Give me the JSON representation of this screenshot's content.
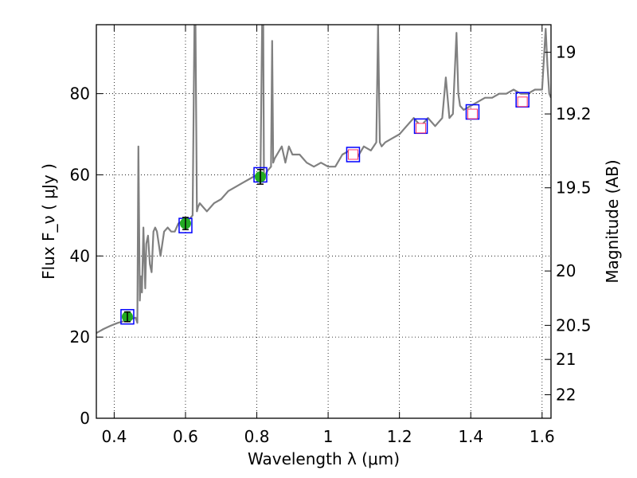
{
  "chart_data": {
    "type": "line",
    "xlabel": "Wavelength  λ (μm)",
    "ylabel": "Flux  F_ν  ( μJy )",
    "y2label": "Magnitude (AB)",
    "xlim": [
      0.35,
      1.625
    ],
    "ylim": [
      0,
      97
    ],
    "x_ticks": [
      0.4,
      0.6,
      0.8,
      1.0,
      1.2,
      1.4,
      1.6
    ],
    "x_tick_labels": [
      "0.4",
      "0.6",
      "0.8",
      "1",
      "1.2",
      "1.4",
      "1.6"
    ],
    "y_ticks": [
      0,
      20,
      40,
      60,
      80
    ],
    "y_tick_labels": [
      "0",
      "20",
      "40",
      "60",
      "80"
    ],
    "y2_ticks": [
      {
        "label": "19",
        "flux": 90.2
      },
      {
        "label": "19.2",
        "flux": 75.0
      },
      {
        "label": "19.5",
        "flux": 56.8
      },
      {
        "label": "20",
        "flux": 36.3
      },
      {
        "label": "20.5",
        "flux": 22.9
      },
      {
        "label": "21",
        "flux": 14.5
      },
      {
        "label": "22",
        "flux": 5.8
      }
    ],
    "grid": true,
    "colors": {
      "spectrum": "#808080",
      "model_box": "#0000ff",
      "measured_point": "#22aa22",
      "upper_limit_box": "#ff3366",
      "error_bar": "#000000"
    },
    "series": [
      {
        "kind": "spectrum",
        "x": [
          0.35,
          0.37,
          0.39,
          0.41,
          0.43,
          0.45,
          0.46,
          0.465,
          0.468,
          0.472,
          0.475,
          0.478,
          0.482,
          0.487,
          0.49,
          0.495,
          0.5,
          0.505,
          0.51,
          0.515,
          0.52,
          0.53,
          0.54,
          0.55,
          0.56,
          0.57,
          0.58,
          0.59,
          0.6,
          0.61,
          0.62,
          0.625,
          0.628,
          0.632,
          0.635,
          0.64,
          0.66,
          0.68,
          0.7,
          0.72,
          0.74,
          0.76,
          0.78,
          0.8,
          0.81,
          0.815,
          0.818,
          0.82,
          0.824,
          0.83,
          0.84,
          0.843,
          0.846,
          0.85,
          0.87,
          0.88,
          0.89,
          0.9,
          0.92,
          0.94,
          0.96,
          0.98,
          1.0,
          1.02,
          1.04,
          1.06,
          1.08,
          1.1,
          1.12,
          1.135,
          1.14,
          1.145,
          1.15,
          1.16,
          1.18,
          1.2,
          1.22,
          1.24,
          1.26,
          1.28,
          1.3,
          1.32,
          1.33,
          1.34,
          1.35,
          1.36,
          1.365,
          1.37,
          1.38,
          1.4,
          1.42,
          1.44,
          1.46,
          1.48,
          1.5,
          1.52,
          1.54,
          1.56,
          1.58,
          1.6,
          1.61,
          1.615,
          1.62,
          1.625
        ],
        "y": [
          21,
          22,
          22.8,
          23.5,
          24,
          24.5,
          24.8,
          23.5,
          67,
          29,
          35,
          31,
          47,
          32,
          43,
          45,
          38,
          36,
          46,
          47,
          46,
          40,
          46,
          47,
          46,
          46,
          48,
          48.5,
          49,
          49,
          50,
          97,
          97,
          51,
          52,
          53,
          51,
          53,
          54,
          56,
          57,
          58,
          59,
          60,
          58,
          97,
          97,
          59,
          60,
          61,
          62,
          93,
          63,
          64,
          67,
          63,
          67,
          65,
          65,
          63,
          62,
          63,
          62,
          62,
          65,
          66,
          64,
          67,
          66,
          68,
          97,
          68,
          67,
          68,
          69,
          70,
          72,
          74,
          72,
          74,
          72,
          74,
          84,
          74,
          75,
          95,
          80,
          77,
          76,
          77,
          78,
          79,
          79,
          80,
          80,
          81,
          80,
          80,
          81,
          81,
          96,
          87,
          80,
          79
        ]
      },
      {
        "kind": "measured",
        "x": [
          0.437,
          0.6,
          0.81
        ],
        "y": [
          25,
          48,
          59.5
        ],
        "yerr": [
          1.2,
          1.5,
          1.8
        ]
      },
      {
        "kind": "upper_limit",
        "x": [
          1.07,
          1.26,
          1.405,
          1.545
        ],
        "y": [
          65,
          71.5,
          75,
          78
        ]
      },
      {
        "kind": "model",
        "x": [
          0.437,
          0.6,
          0.81,
          1.07,
          1.26,
          1.405,
          1.545
        ],
        "y": [
          25,
          47.5,
          60,
          65,
          72,
          75.5,
          78.5
        ]
      }
    ]
  }
}
